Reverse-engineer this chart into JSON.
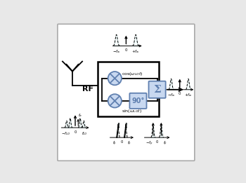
{
  "bg_color": "#e8e8e8",
  "box_color": "#6080b0",
  "box_face": "#c8d8f0",
  "rf_text": "RF",
  "cos_text": "$\\cos(\\omega_{LO}t)$",
  "sin_text": "$\\sin(\\omega_{LO}t)$",
  "sum_text": "Σ",
  "phase_text": "90°",
  "fig_width": 3.5,
  "fig_height": 2.61,
  "dpi": 100
}
